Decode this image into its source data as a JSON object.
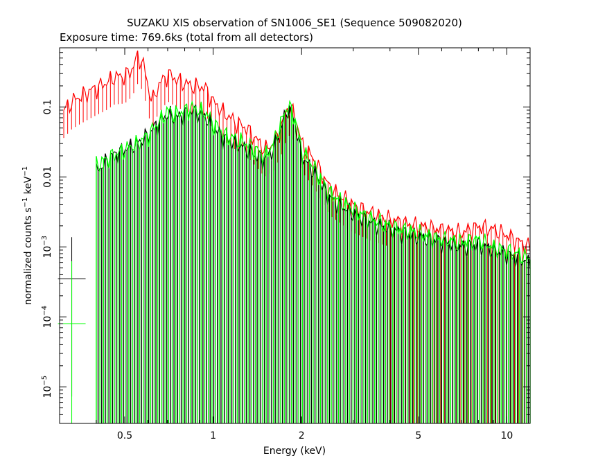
{
  "chart_data": {
    "type": "line",
    "title": "SUZAKU XIS observation of SN1006_SE1 (Sequence 509082020)",
    "subtitle": "Exposure time: 769.6ks (total from all detectors)",
    "xlabel": "Energy (keV)",
    "ylabel": {
      "base": "normalized counts s",
      "exp1": "−1",
      "mid": " keV",
      "exp2": "−1"
    },
    "x_scale": "log",
    "y_scale": "log",
    "xlim": [
      0.3,
      12
    ],
    "ylim": [
      3e-06,
      0.7
    ],
    "grid": false,
    "x_ticks": [
      {
        "value": 0.5,
        "label": "0.5"
      },
      {
        "value": 1,
        "label": "1"
      },
      {
        "value": 2,
        "label": "2"
      },
      {
        "value": 5,
        "label": "5"
      },
      {
        "value": 10,
        "label": "10"
      }
    ],
    "y_ticks": [
      {
        "value": 0.1,
        "label": "0.1",
        "mantissa": "0.1",
        "exponent": ""
      },
      {
        "value": 0.01,
        "label": "0.01",
        "mantissa": "0.01",
        "exponent": ""
      },
      {
        "value": 0.001,
        "label": "10−3",
        "mantissa": "10",
        "exponent": "−3"
      },
      {
        "value": 0.0001,
        "label": "10−4",
        "mantissa": "10",
        "exponent": "−4"
      },
      {
        "value": 1e-05,
        "label": "10−5",
        "mantissa": "10",
        "exponent": "−5"
      }
    ],
    "series": [
      {
        "color": "#ff0000",
        "points": [
          [
            0.31,
            0.09
          ],
          [
            0.33,
            0.12
          ],
          [
            0.35,
            0.14
          ],
          [
            0.38,
            0.17
          ],
          [
            0.4,
            0.19
          ],
          [
            0.43,
            0.22
          ],
          [
            0.46,
            0.27
          ],
          [
            0.5,
            0.28
          ],
          [
            0.53,
            0.35
          ],
          [
            0.555,
            0.55
          ],
          [
            0.58,
            0.4
          ],
          [
            0.6,
            0.2
          ],
          [
            0.62,
            0.12
          ],
          [
            0.65,
            0.2
          ],
          [
            0.7,
            0.3
          ],
          [
            0.75,
            0.25
          ],
          [
            0.8,
            0.22
          ],
          [
            0.85,
            0.2
          ],
          [
            0.9,
            0.2
          ],
          [
            0.95,
            0.18
          ],
          [
            1.0,
            0.12
          ],
          [
            1.1,
            0.08
          ],
          [
            1.2,
            0.06
          ],
          [
            1.3,
            0.05
          ],
          [
            1.4,
            0.035
          ],
          [
            1.5,
            0.025
          ],
          [
            1.6,
            0.03
          ],
          [
            1.7,
            0.05
          ],
          [
            1.8,
            0.1
          ],
          [
            1.9,
            0.08
          ],
          [
            2.0,
            0.03
          ],
          [
            2.2,
            0.018
          ],
          [
            2.5,
            0.007
          ],
          [
            3.0,
            0.004
          ],
          [
            3.5,
            0.003
          ],
          [
            4.0,
            0.0025
          ],
          [
            5.0,
            0.002
          ],
          [
            6.0,
            0.0018
          ],
          [
            7.0,
            0.0016
          ],
          [
            8.0,
            0.002
          ],
          [
            9.0,
            0.0018
          ],
          [
            10.0,
            0.0015
          ],
          [
            11.0,
            0.0012
          ],
          [
            12.0,
            0.001
          ]
        ]
      },
      {
        "color": "#000000",
        "points": [
          [
            0.33,
            0.00035
          ],
          [
            0.4,
            0.012
          ],
          [
            0.45,
            0.02
          ],
          [
            0.5,
            0.025
          ],
          [
            0.55,
            0.03
          ],
          [
            0.6,
            0.04
          ],
          [
            0.65,
            0.06
          ],
          [
            0.7,
            0.08
          ],
          [
            0.75,
            0.07
          ],
          [
            0.8,
            0.08
          ],
          [
            0.85,
            0.09
          ],
          [
            0.9,
            0.08
          ],
          [
            0.95,
            0.07
          ],
          [
            1.0,
            0.05
          ],
          [
            1.1,
            0.035
          ],
          [
            1.2,
            0.03
          ],
          [
            1.3,
            0.025
          ],
          [
            1.4,
            0.02
          ],
          [
            1.5,
            0.018
          ],
          [
            1.6,
            0.025
          ],
          [
            1.7,
            0.05
          ],
          [
            1.8,
            0.1
          ],
          [
            1.9,
            0.06
          ],
          [
            2.0,
            0.02
          ],
          [
            2.2,
            0.012
          ],
          [
            2.5,
            0.005
          ],
          [
            3.0,
            0.003
          ],
          [
            3.5,
            0.0022
          ],
          [
            4.0,
            0.0018
          ],
          [
            5.0,
            0.0014
          ],
          [
            6.0,
            0.0012
          ],
          [
            7.0,
            0.001
          ],
          [
            8.0,
            0.0011
          ],
          [
            9.0,
            0.0009
          ],
          [
            10.0,
            0.0008
          ],
          [
            12.0,
            0.0006
          ]
        ]
      },
      {
        "color": "#00ff00",
        "points": [
          [
            0.33,
            8e-05
          ],
          [
            0.4,
            0.015
          ],
          [
            0.45,
            0.02
          ],
          [
            0.5,
            0.025
          ],
          [
            0.55,
            0.03
          ],
          [
            0.6,
            0.04
          ],
          [
            0.65,
            0.06
          ],
          [
            0.7,
            0.09
          ],
          [
            0.75,
            0.08
          ],
          [
            0.8,
            0.09
          ],
          [
            0.85,
            0.1
          ],
          [
            0.9,
            0.09
          ],
          [
            0.95,
            0.08
          ],
          [
            1.0,
            0.06
          ],
          [
            1.1,
            0.04
          ],
          [
            1.2,
            0.035
          ],
          [
            1.3,
            0.03
          ],
          [
            1.4,
            0.025
          ],
          [
            1.5,
            0.02
          ],
          [
            1.6,
            0.03
          ],
          [
            1.7,
            0.06
          ],
          [
            1.8,
            0.11
          ],
          [
            1.9,
            0.07
          ],
          [
            2.0,
            0.025
          ],
          [
            2.2,
            0.014
          ],
          [
            2.5,
            0.006
          ],
          [
            3.0,
            0.0035
          ],
          [
            3.5,
            0.0025
          ],
          [
            4.0,
            0.002
          ],
          [
            5.0,
            0.0016
          ],
          [
            6.0,
            0.0013
          ],
          [
            7.0,
            0.0012
          ],
          [
            8.0,
            0.0013
          ],
          [
            9.0,
            0.001
          ],
          [
            10.0,
            0.0009
          ],
          [
            12.0,
            0.0007
          ]
        ]
      }
    ]
  }
}
